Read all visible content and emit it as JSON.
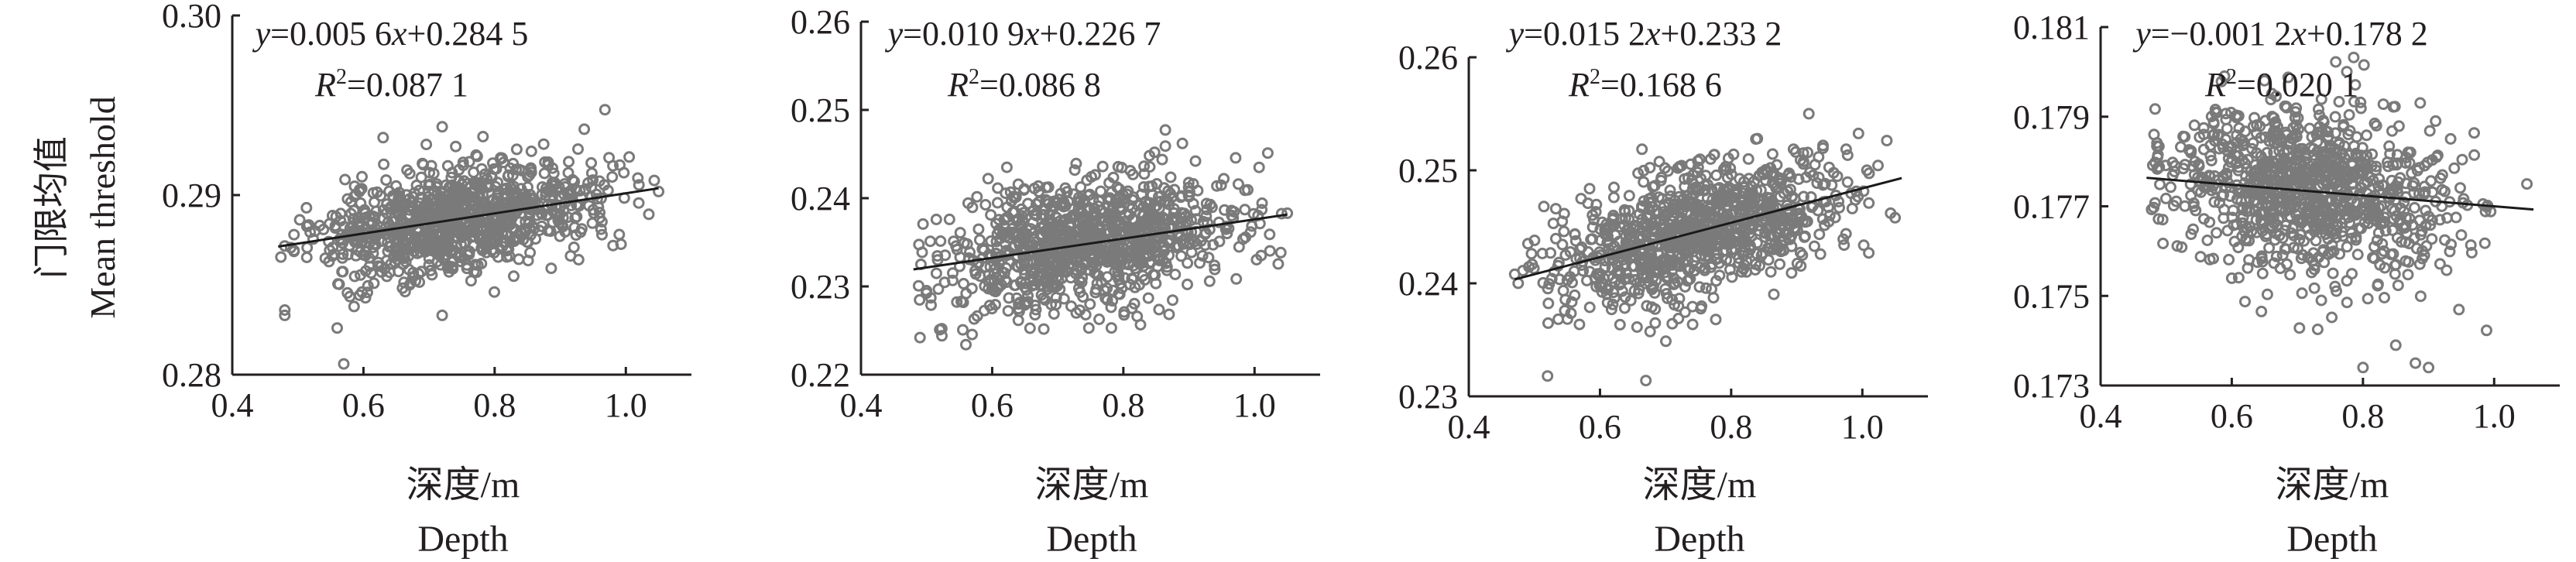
{
  "figure": {
    "ylabel_cn": "门限均值",
    "ylabel_en": "Mean threshold",
    "xlabel_cn": "深度/m",
    "xlabel_en": "Depth"
  },
  "chart_data": [
    {
      "type": "scatter",
      "equation": {
        "y": "y",
        "middle": "=0.005 6",
        "x": "x",
        "tail": "+0.284 5"
      },
      "r2": {
        "r": "R",
        "sup": "2",
        "value": "=0.087 1"
      },
      "xlim": [
        0.4,
        1.1
      ],
      "ylim": [
        0.28,
        0.3
      ],
      "x_ticks": [
        0.4,
        0.6,
        0.8,
        1.0
      ],
      "x_tick_labels": [
        "0.4",
        "0.6",
        "0.8",
        "1.0"
      ],
      "y_ticks": [
        0.28,
        0.29,
        0.3
      ],
      "y_tick_labels": [
        "0.28",
        "0.29",
        "0.30"
      ],
      "fit": {
        "slope": 0.0056,
        "intercept": 0.2845,
        "x_range": [
          0.47,
          1.05
        ]
      },
      "cloud": {
        "x_mean": 0.74,
        "x_sd": 0.11,
        "x_min": 0.47,
        "x_max": 1.06,
        "y_sd": 0.0014,
        "n": 950,
        "seed": 11
      },
      "outliers": [
        {
          "x": 0.48,
          "y": 0.2833
        },
        {
          "x": 0.48,
          "y": 0.2836
        },
        {
          "x": 0.57,
          "y": 0.2806
        },
        {
          "x": 0.56,
          "y": 0.2826
        },
        {
          "x": 0.63,
          "y": 0.2932
        },
        {
          "x": 0.72,
          "y": 0.2938
        },
        {
          "x": 0.72,
          "y": 0.2833
        },
        {
          "x": 0.99,
          "y": 0.2878
        },
        {
          "x": 1.05,
          "y": 0.2902
        }
      ]
    },
    {
      "type": "scatter",
      "equation": {
        "y": "y",
        "middle": "=0.010 9",
        "x": "x",
        "tail": "+0.226 7"
      },
      "r2": {
        "r": "R",
        "sup": "2",
        "value": "=0.086 8"
      },
      "xlim": [
        0.4,
        1.1
      ],
      "ylim": [
        0.22,
        0.26
      ],
      "x_ticks": [
        0.4,
        0.6,
        0.8,
        1.0
      ],
      "x_tick_labels": [
        "0.4",
        "0.6",
        "0.8",
        "1.0"
      ],
      "y_ticks": [
        0.22,
        0.23,
        0.24,
        0.25,
        0.26
      ],
      "y_tick_labels": [
        "0.22",
        "0.23",
        "0.24",
        "0.25",
        "0.26"
      ],
      "fit": {
        "slope": 0.0109,
        "intercept": 0.2267,
        "x_range": [
          0.48,
          1.05
        ]
      },
      "cloud": {
        "x_mean": 0.74,
        "x_sd": 0.11,
        "x_min": 0.48,
        "x_max": 1.05,
        "y_sd": 0.0035,
        "n": 950,
        "seed": 23
      },
      "outliers": [
        {
          "x": 0.49,
          "y": 0.2242
        },
        {
          "x": 0.56,
          "y": 0.2234
        },
        {
          "x": 0.52,
          "y": 0.2251
        },
        {
          "x": 0.89,
          "y": 0.2462
        },
        {
          "x": 0.91,
          "y": 0.2442
        },
        {
          "x": 1.05,
          "y": 0.2383
        },
        {
          "x": 1.01,
          "y": 0.2335
        }
      ]
    },
    {
      "type": "scatter",
      "equation": {
        "y": "y",
        "middle": "=0.015 2",
        "x": "x",
        "tail": "+0.233 2"
      },
      "r2": {
        "r": "R",
        "sup": "2",
        "value": "=0.168 6"
      },
      "xlim": [
        0.4,
        1.1
      ],
      "ylim": [
        0.23,
        0.26
      ],
      "x_ticks": [
        0.4,
        0.6,
        0.8,
        1.0
      ],
      "x_tick_labels": [
        "0.4",
        "0.6",
        "0.8",
        "1.0"
      ],
      "y_ticks": [
        0.23,
        0.24,
        0.25,
        0.26
      ],
      "y_tick_labels": [
        "0.23",
        "0.24",
        "0.25",
        "0.26"
      ],
      "fit": {
        "slope": 0.0152,
        "intercept": 0.2332,
        "x_range": [
          0.47,
          1.06
        ]
      },
      "cloud": {
        "x_mean": 0.75,
        "x_sd": 0.11,
        "x_min": 0.47,
        "x_max": 1.06,
        "y_sd": 0.0028,
        "n": 950,
        "seed": 37
      },
      "outliers": [
        {
          "x": 0.52,
          "y": 0.2318
        },
        {
          "x": 0.67,
          "y": 0.2314
        },
        {
          "x": 0.84,
          "y": 0.2528
        },
        {
          "x": 0.94,
          "y": 0.2522
        },
        {
          "x": 1.05,
          "y": 0.2458
        },
        {
          "x": 0.47,
          "y": 0.2408
        }
      ]
    },
    {
      "type": "scatter",
      "equation": {
        "y": "y",
        "middle": "=−0.001 2",
        "x": "x",
        "tail": "+0.178 2"
      },
      "r2": {
        "r": "R",
        "sup": "2",
        "value": "=0.020 1"
      },
      "xlim": [
        0.4,
        1.1
      ],
      "ylim": [
        0.173,
        0.181
      ],
      "x_ticks": [
        0.4,
        0.6,
        0.8,
        1.0
      ],
      "x_tick_labels": [
        "0.4",
        "0.6",
        "0.8",
        "1.0"
      ],
      "y_ticks": [
        0.173,
        0.175,
        0.177,
        0.179,
        0.181
      ],
      "y_tick_labels": [
        "0.173",
        "0.175",
        "0.177",
        "0.179",
        "0.181"
      ],
      "fit": {
        "slope": -0.0012,
        "intercept": 0.1782,
        "x_range": [
          0.47,
          1.06
        ]
      },
      "cloud": {
        "x_mean": 0.72,
        "x_sd": 0.11,
        "x_min": 0.47,
        "x_max": 1.05,
        "y_sd": 0.0009,
        "n": 950,
        "seed": 53
      },
      "outliers": [
        {
          "x": 0.8,
          "y": 0.1734
        },
        {
          "x": 0.88,
          "y": 0.1735
        },
        {
          "x": 0.9,
          "y": 0.1734
        },
        {
          "x": 0.85,
          "y": 0.1739
        },
        {
          "x": 1.05,
          "y": 0.1775
        },
        {
          "x": 0.58,
          "y": 0.1786
        }
      ]
    }
  ]
}
